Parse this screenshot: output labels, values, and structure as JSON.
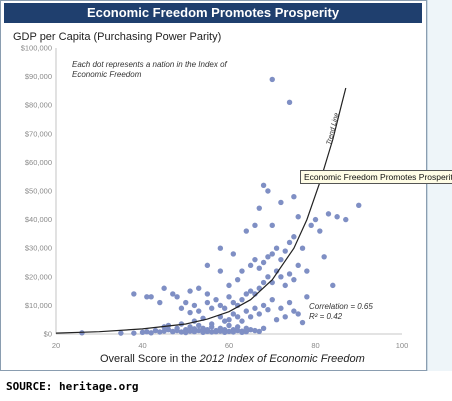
{
  "header": {
    "title": "Economic Freedom Promotes Prosperity"
  },
  "source": "SOURCE: heritage.org",
  "chart_data": {
    "type": "scatter",
    "title": "Economic Freedom Promotes Prosperity",
    "ylabel": "GDP per Capita (Purchasing Power Parity)",
    "xlabel_prefix": "Overall Score in the ",
    "xlabel_italic": "2012 Index of Economic Freedom",
    "note": "Each dot represents a nation in the Index of Economic Freedom",
    "trend_label": "Trend Line",
    "correlation_text": "Correlation = 0.65",
    "r2_text": "R² = 0.42",
    "callout": "Economic Freedom Promotes Prosperity",
    "xlim": [
      20,
      100
    ],
    "ylim": [
      0,
      100000
    ],
    "x_ticks": [
      "20",
      "40",
      "60",
      "80",
      "100"
    ],
    "y_ticks": [
      "$0",
      "$10,000",
      "$20,000",
      "$30,000",
      "$40,000",
      "$50,000",
      "$60,000",
      "$70,000",
      "$80,000",
      "$90,000",
      "$100,000"
    ],
    "grid": false,
    "colors": {
      "point": "#7f8fc4",
      "title_bar": "#1f3f6e",
      "trend": "#222222"
    },
    "trend": [
      [
        20,
        300
      ],
      [
        30,
        800
      ],
      [
        40,
        1800
      ],
      [
        50,
        3500
      ],
      [
        55,
        5200
      ],
      [
        60,
        7800
      ],
      [
        65,
        12000
      ],
      [
        70,
        19000
      ],
      [
        75,
        30000
      ],
      [
        78,
        40000
      ],
      [
        81,
        53000
      ],
      [
        84,
        68000
      ],
      [
        86,
        80000
      ],
      [
        87,
        86000
      ]
    ],
    "points": [
      [
        26,
        400
      ],
      [
        35,
        300
      ],
      [
        38,
        300
      ],
      [
        40,
        600
      ],
      [
        41,
        800
      ],
      [
        42,
        400
      ],
      [
        43,
        1200
      ],
      [
        44,
        700
      ],
      [
        45,
        1000
      ],
      [
        45,
        2500
      ],
      [
        46,
        1500
      ],
      [
        46,
        3000
      ],
      [
        47,
        900
      ],
      [
        47,
        800
      ],
      [
        48,
        1200
      ],
      [
        48,
        2000
      ],
      [
        49,
        700
      ],
      [
        49,
        3500
      ],
      [
        50,
        1500
      ],
      [
        50,
        500
      ],
      [
        51,
        1000
      ],
      [
        51,
        2500
      ],
      [
        52,
        800
      ],
      [
        52,
        1800
      ],
      [
        53,
        1200
      ],
      [
        53,
        3000
      ],
      [
        54,
        600
      ],
      [
        54,
        2000
      ],
      [
        55,
        900
      ],
      [
        55,
        1500
      ],
      [
        56,
        700
      ],
      [
        56,
        2500
      ],
      [
        57,
        1200
      ],
      [
        57,
        800
      ],
      [
        58,
        2000
      ],
      [
        58,
        1000
      ],
      [
        59,
        1500
      ],
      [
        59,
        600
      ],
      [
        60,
        900
      ],
      [
        60,
        3000
      ],
      [
        61,
        1500
      ],
      [
        61,
        700
      ],
      [
        62,
        2500
      ],
      [
        62,
        1200
      ],
      [
        63,
        1000
      ],
      [
        63,
        600
      ],
      [
        64,
        2000
      ],
      [
        64,
        800
      ],
      [
        65,
        1500
      ],
      [
        66,
        1200
      ],
      [
        67,
        900
      ],
      [
        68,
        2000
      ],
      [
        52,
        4500
      ],
      [
        54,
        5500
      ],
      [
        56,
        3500
      ],
      [
        58,
        6000
      ],
      [
        59,
        4500
      ],
      [
        60,
        5000
      ],
      [
        61,
        7000
      ],
      [
        62,
        6000
      ],
      [
        63,
        4500
      ],
      [
        64,
        8000
      ],
      [
        65,
        6000
      ],
      [
        66,
        9000
      ],
      [
        67,
        7000
      ],
      [
        68,
        10000
      ],
      [
        69,
        8500
      ],
      [
        70,
        12000
      ],
      [
        71,
        5000
      ],
      [
        72,
        9000
      ],
      [
        73,
        6000
      ],
      [
        74,
        11000
      ],
      [
        75,
        8000
      ],
      [
        76,
        7000
      ],
      [
        77,
        4000
      ],
      [
        78,
        13000
      ],
      [
        49,
        9000
      ],
      [
        50,
        11000
      ],
      [
        51,
        7500
      ],
      [
        52,
        10000
      ],
      [
        53,
        8000
      ],
      [
        55,
        11000
      ],
      [
        56,
        9000
      ],
      [
        57,
        12000
      ],
      [
        58,
        10000
      ],
      [
        59,
        9000
      ],
      [
        60,
        13000
      ],
      [
        61,
        11000
      ],
      [
        62,
        10000
      ],
      [
        63,
        12000
      ],
      [
        64,
        14000
      ],
      [
        65,
        15000
      ],
      [
        66,
        14000
      ],
      [
        67,
        16000
      ],
      [
        68,
        18000
      ],
      [
        69,
        20000
      ],
      [
        70,
        18000
      ],
      [
        71,
        22000
      ],
      [
        72,
        20000
      ],
      [
        73,
        17000
      ],
      [
        74,
        21000
      ],
      [
        75,
        19000
      ],
      [
        41,
        13000
      ],
      [
        44,
        11000
      ],
      [
        45,
        16000
      ],
      [
        47,
        14000
      ],
      [
        48,
        13000
      ],
      [
        51,
        15000
      ],
      [
        53,
        16000
      ],
      [
        55,
        14000
      ],
      [
        60,
        17000
      ],
      [
        62,
        19000
      ],
      [
        63,
        22000
      ],
      [
        65,
        24000
      ],
      [
        66,
        26000
      ],
      [
        67,
        23000
      ],
      [
        68,
        25000
      ],
      [
        69,
        27000
      ],
      [
        70,
        28000
      ],
      [
        71,
        30000
      ],
      [
        72,
        26000
      ],
      [
        73,
        29000
      ],
      [
        74,
        32000
      ],
      [
        75,
        34000
      ],
      [
        76,
        24000
      ],
      [
        77,
        30000
      ],
      [
        78,
        22000
      ],
      [
        79,
        38000
      ],
      [
        80,
        40000
      ],
      [
        81,
        36000
      ],
      [
        82,
        27000
      ],
      [
        83,
        42000
      ],
      [
        84,
        17000
      ],
      [
        85,
        41000
      ],
      [
        87,
        40000
      ],
      [
        90,
        45000
      ],
      [
        55,
        24000
      ],
      [
        58,
        22000
      ],
      [
        61,
        28000
      ],
      [
        64,
        36000
      ],
      [
        66,
        38000
      ],
      [
        67,
        44000
      ],
      [
        68,
        52000
      ],
      [
        69,
        50000
      ],
      [
        70,
        38000
      ],
      [
        72,
        46000
      ],
      [
        75,
        48000
      ],
      [
        76,
        41000
      ],
      [
        70,
        89000
      ],
      [
        74,
        81000
      ],
      [
        38,
        14000
      ],
      [
        42,
        13000
      ],
      [
        58,
        30000
      ]
    ]
  }
}
